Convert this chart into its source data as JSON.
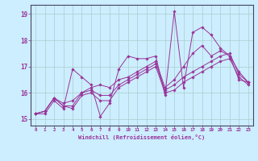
{
  "xlabel": "Windchill (Refroidissement éolien,°C)",
  "background_color": "#cceeff",
  "grid_color": "#aacccc",
  "line_color": "#993399",
  "spine_color": "#444466",
  "xlim": [
    -0.5,
    23.5
  ],
  "ylim": [
    14.75,
    19.35
  ],
  "xticks": [
    0,
    1,
    2,
    3,
    4,
    5,
    6,
    7,
    8,
    9,
    10,
    11,
    12,
    13,
    14,
    15,
    16,
    17,
    18,
    19,
    20,
    21,
    22,
    23
  ],
  "yticks": [
    15,
    16,
    17,
    18,
    19
  ],
  "series": [
    [
      15.2,
      15.2,
      15.7,
      15.4,
      16.9,
      16.6,
      16.3,
      15.1,
      15.6,
      16.9,
      17.4,
      17.3,
      17.3,
      17.4,
      15.9,
      19.1,
      16.2,
      18.3,
      18.5,
      18.2,
      17.7,
      17.4,
      16.5,
      16.4
    ],
    [
      15.2,
      15.3,
      15.8,
      15.6,
      15.7,
      16.0,
      16.2,
      16.3,
      16.2,
      16.5,
      16.6,
      16.8,
      17.0,
      17.2,
      16.2,
      16.5,
      17.0,
      17.5,
      17.8,
      17.4,
      17.6,
      17.4,
      16.8,
      16.4
    ],
    [
      15.2,
      15.3,
      15.8,
      15.5,
      15.5,
      16.0,
      16.1,
      15.9,
      15.9,
      16.3,
      16.5,
      16.7,
      16.9,
      17.1,
      16.1,
      16.3,
      16.6,
      16.8,
      17.0,
      17.2,
      17.4,
      17.5,
      16.7,
      16.4
    ],
    [
      15.2,
      15.3,
      15.8,
      15.5,
      15.4,
      15.9,
      16.0,
      15.7,
      15.7,
      16.2,
      16.4,
      16.6,
      16.8,
      17.0,
      16.0,
      16.1,
      16.4,
      16.6,
      16.8,
      17.0,
      17.2,
      17.3,
      16.6,
      16.3
    ]
  ],
  "figsize": [
    3.2,
    2.0
  ],
  "dpi": 100
}
